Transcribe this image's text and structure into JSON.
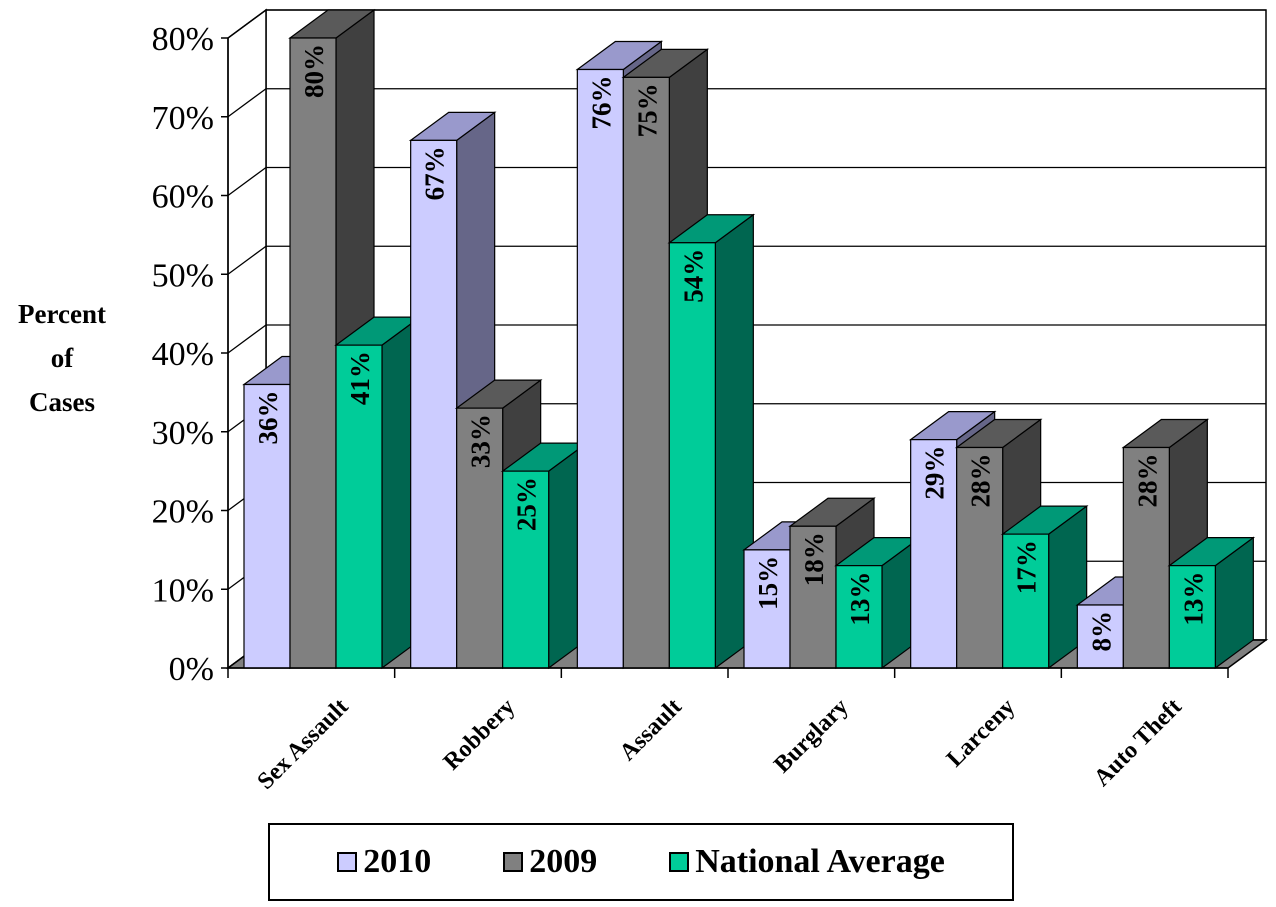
{
  "chart_data": {
    "type": "bar",
    "ylabel": [
      "Percent",
      "of",
      "Cases"
    ],
    "ylim": [
      0,
      80
    ],
    "yticks": [
      "0%",
      "10%",
      "20%",
      "30%",
      "40%",
      "50%",
      "60%",
      "70%",
      "80%"
    ],
    "categories": [
      "Sex Assault",
      "Robbery",
      "Assault",
      "Burglary",
      "Larceny",
      "Auto Theft"
    ],
    "series": [
      {
        "name": "2010",
        "values": [
          36,
          67,
          76,
          15,
          29,
          8
        ],
        "labels": [
          "36%",
          "67%",
          "76%",
          "15%",
          "29%",
          "8%"
        ],
        "front": "#ccccff",
        "top": "#9999cc",
        "side": "#666688"
      },
      {
        "name": "2009",
        "values": [
          80,
          33,
          75,
          18,
          28,
          28
        ],
        "labels": [
          "80%",
          "33%",
          "75%",
          "18%",
          "28%",
          "28%"
        ],
        "front": "#808080",
        "top": "#5a5a5a",
        "side": "#404040"
      },
      {
        "name": "National Average",
        "values": [
          41,
          25,
          54,
          13,
          17,
          13
        ],
        "labels": [
          "41%",
          "25%",
          "54%",
          "13%",
          "17%",
          "13%"
        ],
        "front": "#00cc99",
        "top": "#009977",
        "side": "#006650"
      }
    ],
    "grid": true,
    "legend_position": "bottom"
  }
}
